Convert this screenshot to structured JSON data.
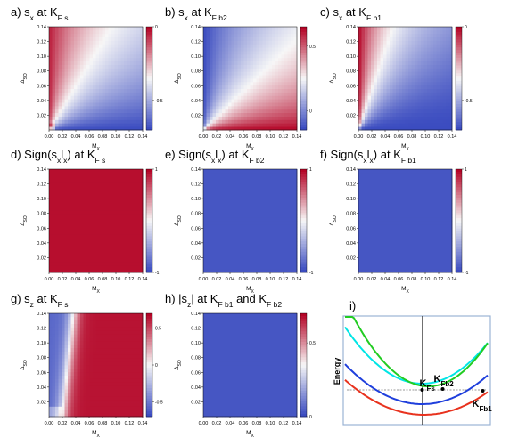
{
  "figure": {
    "colors": {
      "blue": "#3b4cc0",
      "white": "#f7f7f7",
      "red": "#b40426",
      "frame": "#9bb3d4"
    },
    "x_label": "M",
    "x_label_sub": "X",
    "y_label": "Δ",
    "y_label_sub": "SO"
  },
  "chart_data": [
    {
      "type": "heatmap",
      "title": {
        "prefix": "a)  s",
        "s_sub": "x",
        "mid": " at K",
        "k_sub": "F s"
      },
      "color_scale": "coolwarm",
      "colorbar_ticks": [
        "0",
        "-0.5"
      ],
      "x_ticks": [
        "0.00",
        "0.02",
        "0.04",
        "0.06",
        "0.08",
        "0.10",
        "0.12",
        "0.14"
      ],
      "y_ticks": [
        "0.02",
        "0.04",
        "0.06",
        "0.08",
        "0.10",
        "0.12",
        "0.14"
      ],
      "xlim": [
        0,
        0.14
      ],
      "ylim": [
        0,
        0.14
      ],
      "value_range": [
        -0.7,
        0
      ],
      "pattern": "ratio-red-upper-left"
    },
    {
      "type": "heatmap",
      "title": {
        "prefix": "b)  s",
        "s_sub": "x",
        "mid": " at K",
        "k_sub": "F b2"
      },
      "color_scale": "coolwarm",
      "colorbar_ticks": [
        "0.5",
        "0"
      ],
      "x_ticks": [
        "0.00",
        "0.02",
        "0.04",
        "0.06",
        "0.08",
        "0.10",
        "0.12",
        "0.14"
      ],
      "y_ticks": [
        "0.02",
        "0.04",
        "0.06",
        "0.08",
        "0.10",
        "0.12",
        "0.14"
      ],
      "xlim": [
        0,
        0.14
      ],
      "ylim": [
        0,
        0.14
      ],
      "value_range": [
        -0.15,
        0.65
      ],
      "pattern": "ratio-blue-upper-left"
    },
    {
      "type": "heatmap",
      "title": {
        "prefix": "c)  s",
        "s_sub": "x",
        "mid": " at K",
        "k_sub": "F b1"
      },
      "color_scale": "coolwarm",
      "colorbar_ticks": [
        "0",
        "-0.5"
      ],
      "x_ticks": [
        "0.00",
        "0.02",
        "0.04",
        "0.06",
        "0.08",
        "0.10",
        "0.12",
        "0.14"
      ],
      "y_ticks": [
        "0.02",
        "0.04",
        "0.06",
        "0.08",
        "0.10",
        "0.12",
        "0.14"
      ],
      "xlim": [
        0,
        0.14
      ],
      "ylim": [
        0,
        0.14
      ],
      "value_range": [
        -0.7,
        0
      ],
      "pattern": "ratio-red-upper-left-narrow"
    },
    {
      "type": "heatmap",
      "title": {
        "prefix": "d)  Sign(s",
        "s_sub": "x",
        "mid": "l",
        "l_sub": "x",
        "after": ") at K",
        "k_sub": "F s"
      },
      "color_scale": "coolwarm",
      "colorbar_ticks": [
        "1",
        "-1"
      ],
      "x_ticks": [
        "0.00",
        "0.02",
        "0.04",
        "0.06",
        "0.08",
        "0.10",
        "0.12",
        "0.14"
      ],
      "y_ticks": [
        "0.02",
        "0.04",
        "0.06",
        "0.08",
        "0.10",
        "0.12",
        "0.14"
      ],
      "xlim": [
        0,
        0.14
      ],
      "ylim": [
        0,
        0.14
      ],
      "value_range": [
        -1,
        1
      ],
      "pattern": "uniform-red"
    },
    {
      "type": "heatmap",
      "title": {
        "prefix": "e)  Sign(s",
        "s_sub": "x",
        "mid": "l",
        "l_sub": "x",
        "after": ") at K",
        "k_sub": "F b2"
      },
      "color_scale": "coolwarm",
      "colorbar_ticks": [
        "1",
        "-1"
      ],
      "x_ticks": [
        "0.00",
        "0.02",
        "0.04",
        "0.06",
        "0.08",
        "0.10",
        "0.12",
        "0.14"
      ],
      "y_ticks": [
        "0.02",
        "0.04",
        "0.06",
        "0.08",
        "0.10",
        "0.12",
        "0.14"
      ],
      "xlim": [
        0,
        0.14
      ],
      "ylim": [
        0,
        0.14
      ],
      "value_range": [
        -1,
        1
      ],
      "pattern": "uniform-blue"
    },
    {
      "type": "heatmap",
      "title": {
        "prefix": "f)  Sign(s",
        "s_sub": "x",
        "mid": "l",
        "l_sub": "x",
        "after": ") at K",
        "k_sub": "F b1"
      },
      "color_scale": "coolwarm",
      "colorbar_ticks": [
        "1",
        "-1"
      ],
      "x_ticks": [
        "0.00",
        "0.02",
        "0.04",
        "0.06",
        "0.08",
        "0.10",
        "0.12",
        "0.14"
      ],
      "y_ticks": [
        "0.02",
        "0.04",
        "0.06",
        "0.08",
        "0.10",
        "0.12",
        "0.14"
      ],
      "xlim": [
        0,
        0.14
      ],
      "ylim": [
        0,
        0.14
      ],
      "value_range": [
        -1,
        1
      ],
      "pattern": "uniform-blue"
    },
    {
      "type": "heatmap",
      "title": {
        "prefix": "g)  s",
        "s_sub": "z",
        "mid": " at K",
        "k_sub": "F s"
      },
      "color_scale": "coolwarm",
      "colorbar_ticks": [
        "0.5",
        "0",
        "-0.5"
      ],
      "x_ticks": [
        "0.00",
        "0.02",
        "0.04",
        "0.06",
        "0.08",
        "0.10",
        "0.12",
        "0.14"
      ],
      "y_ticks": [
        "0.02",
        "0.04",
        "0.06",
        "0.08",
        "0.10",
        "0.12",
        "0.14"
      ],
      "xlim": [
        0,
        0.14
      ],
      "ylim": [
        0,
        0.14
      ],
      "value_range": [
        -0.7,
        0.7
      ],
      "pattern": "sz-boundary"
    },
    {
      "type": "heatmap",
      "title": {
        "prefix": "h)  |s",
        "s_sub": "z",
        "mid": "| at K",
        "k_sub": "F b1",
        "after": " and K",
        "k2_sub": "F b2"
      },
      "color_scale": "coolwarm",
      "colorbar_ticks": [
        "0.5",
        "0"
      ],
      "x_ticks": [
        "0.00",
        "0.02",
        "0.04",
        "0.06",
        "0.08",
        "0.10",
        "0.12",
        "0.14"
      ],
      "y_ticks": [
        "0.02",
        "0.04",
        "0.06",
        "0.08",
        "0.10",
        "0.12",
        "0.14"
      ],
      "xlim": [
        0,
        0.14
      ],
      "ylim": [
        0,
        0.14
      ],
      "value_range": [
        0,
        0.7
      ],
      "pattern": "uniform-blue"
    },
    {
      "type": "line",
      "title": {
        "prefix": "i)"
      },
      "ylabel": "Energy",
      "series": [
        {
          "color": "#00e5e5"
        },
        {
          "color": "#22cc22"
        },
        {
          "color": "#1f3fdc"
        },
        {
          "color": "#e8321e"
        }
      ],
      "fermi_level_line": true,
      "k_labels": [
        {
          "main": "K",
          "sub": "Fs"
        },
        {
          "main": "K",
          "sub": "Fb2"
        },
        {
          "main": "K",
          "sub": "Fb1"
        }
      ]
    }
  ]
}
